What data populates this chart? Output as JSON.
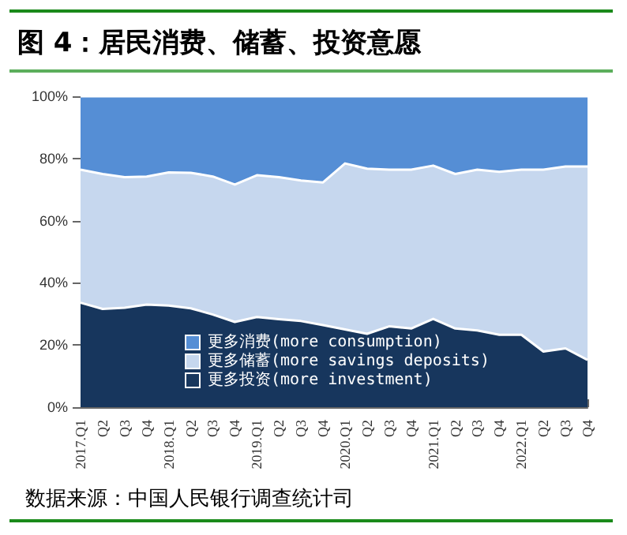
{
  "chart_data": {
    "type": "area",
    "stacked": true,
    "title": "图 4：居民消费、储蓄、投资意愿",
    "categories": [
      "2017.Q1",
      "Q2",
      "Q3",
      "Q4",
      "2018.Q1",
      "Q2",
      "Q3",
      "Q4",
      "2019.Q1",
      "Q2",
      "Q3",
      "Q4",
      "2020.Q1",
      "Q2",
      "Q3",
      "Q4",
      "2021.Q1",
      "Q2",
      "Q3",
      "Q4",
      "2022.Q1",
      "Q2",
      "Q3",
      "Q4"
    ],
    "series": [
      {
        "name": "更多投资(more investment)",
        "color": "#17365d",
        "values": [
          33.6,
          31.6,
          32,
          33,
          32.7,
          31.8,
          29.8,
          27.4,
          29,
          28.3,
          27.7,
          26.4,
          25,
          23.6,
          26,
          25.3,
          28.4,
          25.3,
          24.7,
          23.3,
          23.3,
          17.9,
          18.9,
          15.2
        ]
      },
      {
        "name": "更多储蓄(more savings deposits)",
        "color": "#c6d7ee",
        "values": [
          42.8,
          43.4,
          42,
          41.2,
          42.8,
          43.6,
          44.4,
          44.2,
          45.6,
          45.7,
          45.2,
          45.9,
          53.4,
          53.1,
          50.4,
          51.1,
          49.3,
          49.7,
          51.7,
          52.4,
          53.1,
          58.5,
          58.5,
          62.2
        ]
      },
      {
        "name": "更多消费(more consumption)",
        "color": "#558ed5",
        "values": [
          23.6,
          25,
          26,
          25.8,
          24.5,
          24.6,
          25.8,
          28.4,
          25.4,
          26,
          27.1,
          27.7,
          21.6,
          23.3,
          23.6,
          23.6,
          22.3,
          25,
          23.6,
          24.3,
          23.6,
          23.6,
          22.6,
          22.6
        ]
      }
    ],
    "ylim": [
      0,
      100
    ],
    "yticks": [
      {
        "value": 0,
        "label": "0%"
      },
      {
        "value": 20,
        "label": "20%"
      },
      {
        "value": 40,
        "label": "40%"
      },
      {
        "value": 60,
        "label": "60%"
      },
      {
        "value": 80,
        "label": "80%"
      },
      {
        "value": 100,
        "label": "100%"
      }
    ],
    "grid": false,
    "legend": "bottom",
    "marker": "none",
    "annotations": [
      "数据来源：中国人民银行调查统计司"
    ]
  }
}
